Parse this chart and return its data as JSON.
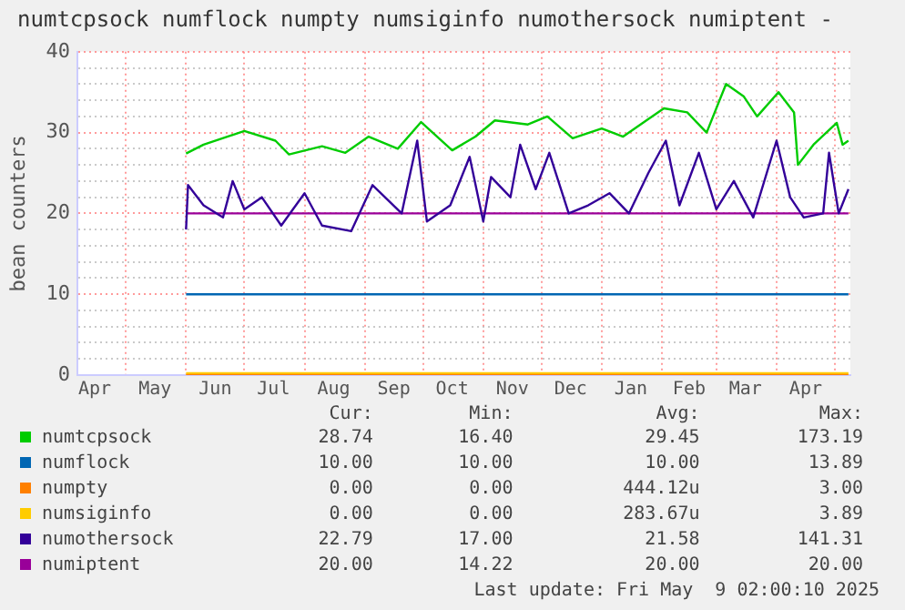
{
  "chart_data": {
    "type": "line",
    "title": "numtcpsock numflock numpty numsiginfo numothersock numiptent -",
    "ylabel": "bean counters",
    "xlim": [
      "2024-04-06",
      "2025-05-09"
    ],
    "xticks": [
      {
        "value": "2024-04-15",
        "label": "Apr"
      },
      {
        "value": "2024-05-01",
        "label": null
      },
      {
        "value": "2024-05-16",
        "label": "May"
      },
      {
        "value": "2024-06-01",
        "label": null
      },
      {
        "value": "2024-06-16",
        "label": "Jun"
      },
      {
        "value": "2024-07-01",
        "label": null
      },
      {
        "value": "2024-07-16",
        "label": "Jul"
      },
      {
        "value": "2024-08-01",
        "label": null
      },
      {
        "value": "2024-08-16",
        "label": "Aug"
      },
      {
        "value": "2024-09-01",
        "label": null
      },
      {
        "value": "2024-09-16",
        "label": "Sep"
      },
      {
        "value": "2024-10-01",
        "label": null
      },
      {
        "value": "2024-10-16",
        "label": "Oct"
      },
      {
        "value": "2024-11-01",
        "label": null
      },
      {
        "value": "2024-11-16",
        "label": "Nov"
      },
      {
        "value": "2024-12-01",
        "label": null
      },
      {
        "value": "2024-12-16",
        "label": "Dec"
      },
      {
        "value": "2025-01-01",
        "label": null
      },
      {
        "value": "2025-01-16",
        "label": "Jan"
      },
      {
        "value": "2025-02-01",
        "label": null
      },
      {
        "value": "2025-02-15",
        "label": "Feb"
      },
      {
        "value": "2025-03-01",
        "label": null
      },
      {
        "value": "2025-03-16",
        "label": "Mar"
      },
      {
        "value": "2025-04-01",
        "label": null
      },
      {
        "value": "2025-04-16",
        "label": "Apr"
      },
      {
        "value": "2025-05-01",
        "label": null
      }
    ],
    "ylim": [
      0,
      40
    ],
    "yticks": [
      0,
      {
        "value": 2,
        "label": null
      },
      {
        "value": 4,
        "label": null
      },
      {
        "value": 6,
        "label": null
      },
      {
        "value": 8,
        "label": null
      },
      10,
      {
        "value": 12,
        "label": null
      },
      {
        "value": 14,
        "label": null
      },
      {
        "value": 16,
        "label": null
      },
      {
        "value": 18,
        "label": null
      },
      20,
      {
        "value": 22,
        "label": null
      },
      {
        "value": 24,
        "label": null
      },
      {
        "value": 26,
        "label": null
      },
      {
        "value": 28,
        "label": null
      },
      30,
      {
        "value": 32,
        "label": null
      },
      {
        "value": 34,
        "label": null
      },
      {
        "value": 36,
        "label": null
      },
      {
        "value": 38,
        "label": null
      },
      40
    ],
    "grid": true,
    "legend": "bottom",
    "marker": "none",
    "line_style": "solid",
    "series": [
      {
        "name": "numtcpsock",
        "color": "#00cc00",
        "x": [
          "2024-06-01",
          "2024-06-10",
          "2024-07-01",
          "2024-07-17",
          "2024-07-24",
          "2024-08-10",
          "2024-08-22",
          "2024-09-03",
          "2024-09-18",
          "2024-09-30",
          "2024-10-16",
          "2024-10-28",
          "2024-11-07",
          "2024-11-24",
          "2024-12-04",
          "2024-12-17",
          "2025-01-01",
          "2025-01-12",
          "2025-01-24",
          "2025-02-02",
          "2025-02-14",
          "2025-02-24",
          "2025-03-06",
          "2025-03-15",
          "2025-03-22",
          "2025-04-02",
          "2025-04-10",
          "2025-04-12",
          "2025-04-20",
          "2025-05-02",
          "2025-05-05",
          "2025-05-08"
        ],
        "values": [
          27.4,
          28.5,
          30.2,
          29,
          27.3,
          28.3,
          27.5,
          29.5,
          28,
          31.3,
          27.8,
          29.5,
          31.5,
          31,
          32,
          29.3,
          30.5,
          29.5,
          31.5,
          33,
          32.5,
          30,
          36,
          34.5,
          32,
          35,
          32.5,
          26,
          28.5,
          31.2,
          28.5,
          29
        ]
      },
      {
        "name": "numflock",
        "color": "#0066b3",
        "x": [
          "2024-06-01",
          "2025-05-08"
        ],
        "values": [
          10,
          10
        ]
      },
      {
        "name": "numpty",
        "color": "#ff8000",
        "x": [
          "2024-06-01",
          "2025-05-08"
        ],
        "values": [
          0,
          0
        ]
      },
      {
        "name": "numsiginfo",
        "color": "#ffcc00",
        "x": [
          "2024-06-01",
          "2025-05-08"
        ],
        "values": [
          0,
          0
        ]
      },
      {
        "name": "numothersock",
        "color": "#330099",
        "x": [
          "2024-06-01",
          "2024-06-02",
          "2024-06-10",
          "2024-06-20",
          "2024-06-25",
          "2024-07-01",
          "2024-07-10",
          "2024-07-20",
          "2024-08-01",
          "2024-08-10",
          "2024-08-25",
          "2024-09-05",
          "2024-09-20",
          "2024-09-28",
          "2024-10-03",
          "2024-10-15",
          "2024-10-25",
          "2024-11-01",
          "2024-11-05",
          "2024-11-15",
          "2024-11-20",
          "2024-11-28",
          "2024-12-05",
          "2024-12-15",
          "2024-12-25",
          "2025-01-05",
          "2025-01-15",
          "2025-01-25",
          "2025-02-03",
          "2025-02-10",
          "2025-02-20",
          "2025-03-01",
          "2025-03-10",
          "2025-03-20",
          "2025-04-01",
          "2025-04-08",
          "2025-04-15",
          "2025-04-25",
          "2025-04-28",
          "2025-05-03",
          "2025-05-08"
        ],
        "values": [
          18,
          23.5,
          21,
          19.5,
          24,
          20.5,
          22,
          18.5,
          22.5,
          18.5,
          17.8,
          23.5,
          20,
          29,
          19,
          21,
          27,
          19,
          24.5,
          22,
          28.5,
          23,
          27.5,
          20,
          21,
          22.5,
          20,
          25,
          29,
          21,
          27.5,
          20.5,
          24,
          19.5,
          29,
          22,
          19.5,
          20,
          27.5,
          20,
          23
        ]
      },
      {
        "name": "numiptent",
        "color": "#990099",
        "x": [
          "2024-06-01",
          "2025-05-08"
        ],
        "values": [
          20,
          20
        ]
      }
    ],
    "annotations": [
      "Cur:",
      "Min:",
      "Avg:",
      "Max:",
      "28.74",
      "16.40",
      "29.45",
      "173.19",
      "10.00",
      "10.00",
      "10.00",
      "13.89",
      "0.00",
      "0.00",
      "444.12u",
      "3.00",
      "0.00",
      "0.00",
      "283.67u",
      "3.89",
      "22.79",
      "17.00",
      "21.58",
      "141.31",
      "20.00",
      "14.22",
      "20.00",
      "20.00",
      "Last update: Fri May  9 02:00:10 2025"
    ]
  }
}
